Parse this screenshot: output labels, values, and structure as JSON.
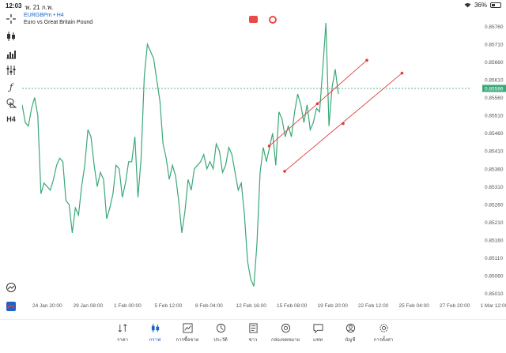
{
  "status": {
    "time": "12:03",
    "date": "พ. 21 ก.พ.",
    "battery": "36%",
    "battery_level": 0.36
  },
  "symbol": {
    "name": "EURGBPm • H4",
    "description": "Euro vs Great Britain Pound"
  },
  "colors": {
    "line": "#3aa878",
    "trend": "#e03a3a",
    "current_price_bg": "#3aa878",
    "accent": "#1e63c4"
  },
  "current_price": "0.85586",
  "icons": [
    "crosshair-icon",
    "candlestick-icon",
    "bar-chart-icon",
    "indicator-icon",
    "function-icon",
    "objects-icon",
    "timeframe-icon",
    "chart-settings-icon",
    "app-logo-icon"
  ],
  "toolbar_timeframe": "H4",
  "nav": [
    {
      "label": "ราคา",
      "icon": "quotes-icon"
    },
    {
      "label": "กราฟ",
      "icon": "chart-icon"
    },
    {
      "label": "การซื้อขาย",
      "icon": "trade-icon"
    },
    {
      "label": "ประวัติ",
      "icon": "history-icon"
    },
    {
      "label": "ข่าว",
      "icon": "news-icon"
    },
    {
      "label": "กล่องจดหมาย",
      "icon": "mailbox-icon"
    },
    {
      "label": "แชท",
      "icon": "chat-icon"
    },
    {
      "label": "บัญชี",
      "icon": "account-icon"
    },
    {
      "label": "การตั้งค่า",
      "icon": "settings-icon"
    }
  ],
  "chart_data": {
    "type": "line",
    "title": "",
    "ylim": [
      0.85,
      0.8579
    ],
    "y_ticks": [
      "0.85760",
      "0.85710",
      "0.85660",
      "0.85610",
      "0.85560",
      "0.85510",
      "0.85460",
      "0.85410",
      "0.85360",
      "0.85310",
      "0.85260",
      "0.85210",
      "0.85160",
      "0.85110",
      "0.85060",
      "0.85010"
    ],
    "x_ticks": [
      "24 Jan 20:00",
      "29 Jan 08:00",
      "1 Feb 00:00",
      "5 Feb 12:00",
      "8 Feb 04:00",
      "12 Feb 16:00",
      "15 Feb 08:00",
      "19 Feb 20:00",
      "22 Feb 12:00",
      "25 Feb 04:00",
      "27 Feb 20:00",
      "1 Mar 12:00"
    ],
    "series": [
      {
        "values": [
          0.8554,
          0.8549,
          0.8548,
          0.8553,
          0.8556,
          0.8551,
          0.8529,
          0.8532,
          0.8531,
          0.853,
          0.8533,
          0.8537,
          0.8539,
          0.8538,
          0.8527,
          0.8526,
          0.8518,
          0.8525,
          0.8523,
          0.8531,
          0.8537,
          0.8547,
          0.8545,
          0.8537,
          0.8531,
          0.8535,
          0.8533,
          0.8522,
          0.8525,
          0.8529,
          0.8537,
          0.8536,
          0.8528,
          0.8532,
          0.8538,
          0.8538,
          0.8545,
          0.8528,
          0.8539,
          0.8562,
          0.8571,
          0.8569,
          0.8567,
          0.8561,
          0.8555,
          0.8543,
          0.8539,
          0.8533,
          0.8537,
          0.8534,
          0.8527,
          0.8518,
          0.8524,
          0.8533,
          0.853,
          0.8536,
          0.8537,
          0.8538,
          0.854,
          0.8536,
          0.8538,
          0.8536,
          0.8543,
          0.8541,
          0.8535,
          0.8537,
          0.8542,
          0.854,
          0.8535,
          0.853,
          0.8532,
          0.8523,
          0.851,
          0.8505,
          0.8503,
          0.8515,
          0.8535,
          0.8542,
          0.8538,
          0.8542,
          0.8546,
          0.8537,
          0.8552,
          0.855,
          0.8545,
          0.8548,
          0.8545,
          0.8552,
          0.8557,
          0.8554,
          0.8549,
          0.8554,
          0.8547,
          0.8549,
          0.8553,
          0.8552,
          0.8564,
          0.8577,
          0.8548,
          0.8559,
          0.8564,
          0.8557
        ]
      }
    ],
    "trend_lines": [
      {
        "from": {
          "x": "15 Feb 00:00",
          "y": 0.85424
        },
        "to": {
          "x": "22 Feb 12:00",
          "y": 0.85665
        },
        "mid": {
          "x": "18 Feb 20:00",
          "y": 0.85543
        }
      },
      {
        "from": {
          "x": "16 Feb 04:00",
          "y": 0.85353
        },
        "to": {
          "x": "24 Feb 20:00",
          "y": 0.85629
        },
        "mid": {
          "x": "20 Feb 12:00",
          "y": 0.85487
        }
      }
    ],
    "current_price_line": 0.85586
  }
}
